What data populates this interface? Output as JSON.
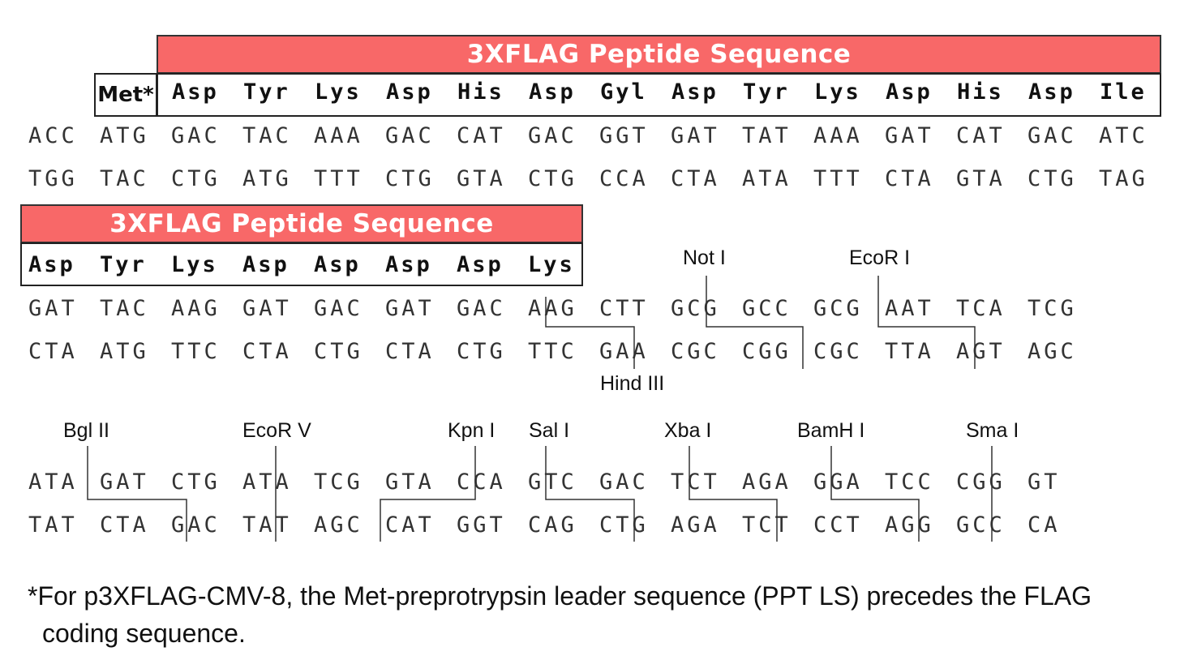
{
  "banners": {
    "top": "3XFLAG Peptide Sequence",
    "middle": "3XFLAG Peptide Sequence"
  },
  "block1": {
    "met": "Met*",
    "amino_acids": [
      "Asp",
      "Tyr",
      "Lys",
      "Asp",
      "His",
      "Asp",
      "Gyl",
      "Asp",
      "Tyr",
      "Lys",
      "Asp",
      "His",
      "Asp",
      "Ile"
    ],
    "top_strand": [
      "ACC",
      "ATG",
      "GAC",
      "TAC",
      "AAA",
      "GAC",
      "CAT",
      "GAC",
      "GGT",
      "GAT",
      "TAT",
      "AAA",
      "GAT",
      "CAT",
      "GAC",
      "ATC"
    ],
    "bottom_strand": [
      "TGG",
      "TAC",
      "CTG",
      "ATG",
      "TTT",
      "CTG",
      "GTA",
      "CTG",
      "CCA",
      "CTA",
      "ATA",
      "TTT",
      "CTA",
      "GTA",
      "CTG",
      "TAG"
    ]
  },
  "block2": {
    "amino_acids": [
      "Asp",
      "Tyr",
      "Lys",
      "Asp",
      "Asp",
      "Asp",
      "Asp",
      "Lys"
    ],
    "top_strand": [
      "GAT",
      "TAC",
      "AAG",
      "GAT",
      "GAC",
      "GAT",
      "GAC",
      "AAG",
      "CTT",
      "GCG",
      "GCC",
      "GCG",
      "AAT",
      "TCA",
      "TCG"
    ],
    "bottom_strand": [
      "CTA",
      "ATG",
      "TTC",
      "CTA",
      "CTG",
      "CTA",
      "CTG",
      "TTC",
      "GAA",
      "CGC",
      "CGG",
      "CGC",
      "TTA",
      "AGT",
      "AGC"
    ],
    "sites": [
      "Not I",
      "EcoR I",
      "Hind III"
    ]
  },
  "block3": {
    "top_strand": [
      "ATA",
      "GAT",
      "CTG",
      "ATA",
      "TCG",
      "GTA",
      "CCA",
      "GTC",
      "GAC",
      "TCT",
      "AGA",
      "GGA",
      "TCC",
      "CGG",
      "GT"
    ],
    "bottom_strand": [
      "TAT",
      "CTA",
      "GAC",
      "TAT",
      "AGC",
      "CAT",
      "GGT",
      "CAG",
      "CTG",
      "AGA",
      "TCT",
      "CCT",
      "AGG",
      "GCC",
      "CA"
    ],
    "sites": [
      "Bgl II",
      "EcoR V",
      "Kpn I",
      "Sal I",
      "Xba I",
      "BamH I",
      "Sma I"
    ]
  },
  "footnote": {
    "line1": "*For p3XFLAG-CMV-8, the Met-preprotrypsin leader sequence (PPT LS) precedes the FLAG",
    "line2": "coding sequence."
  }
}
